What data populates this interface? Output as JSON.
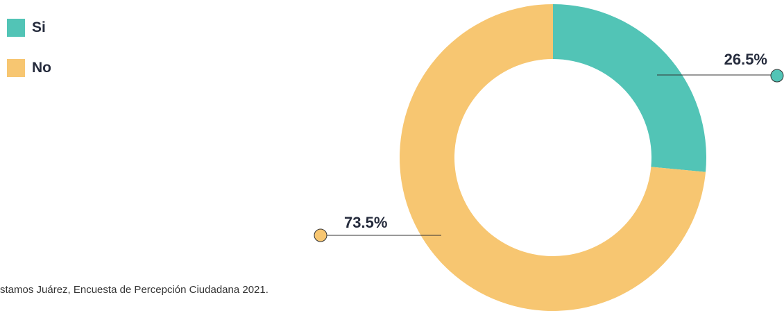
{
  "legend": [
    {
      "label": "Si",
      "color": "#52c4b6"
    },
    {
      "label": "No",
      "color": "#f7c671"
    }
  ],
  "source_text": "stamos Juárez, Encuesta de Percepción Ciudadana 2021.",
  "chart_data": {
    "type": "pie",
    "variant": "donut",
    "categories": [
      "Si",
      "No"
    ],
    "values": [
      26.5,
      73.5
    ],
    "data_labels": [
      "26.5%",
      "73.5%"
    ],
    "colors": [
      "#52c4b6",
      "#f7c671"
    ],
    "legend_position": "top-left"
  }
}
